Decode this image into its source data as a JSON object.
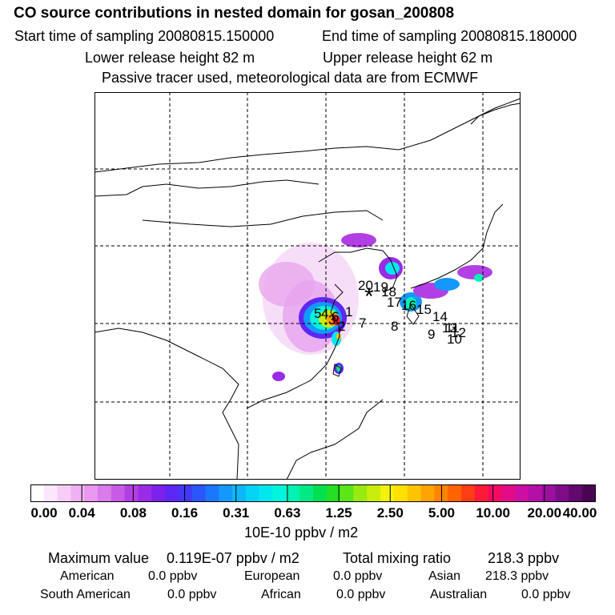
{
  "header": {
    "title": "CO  source contributions in nested domain for gosan_200808",
    "start_label": "Start time of sampling 20080815.150000",
    "end_label": "End time of sampling 20080815.180000",
    "lower_label": "Lower release height   82 m",
    "upper_label": "Upper release height   62 m",
    "tracer_note": "Passive tracer used, meteorological data are from ECMWF"
  },
  "map": {
    "receptor_symbol": "*",
    "source_labels": [
      "1",
      "2",
      "3",
      "4",
      "5",
      "6",
      "7",
      "8",
      "9",
      "10",
      "11",
      "12",
      "13",
      "14",
      "15",
      "16",
      "17",
      "18",
      "19",
      "20"
    ]
  },
  "colorbar": {
    "ticks": [
      "0.00",
      "0.04",
      "0.08",
      "0.16",
      "0.31",
      "0.63",
      "1.25",
      "2.50",
      "5.00",
      "10.00",
      "20.00",
      "40.00"
    ],
    "unit": "10E-10 ppbv / m2",
    "colors": [
      "#ffffff",
      "#fbe6fb",
      "#f6cdf6",
      "#efb1f2",
      "#e898ee",
      "#d97be9",
      "#c85be6",
      "#b23fe3",
      "#9a2be6",
      "#7c22ec",
      "#5f27f2",
      "#4238f8",
      "#2a56fb",
      "#1b77fc",
      "#1498fb",
      "#0cb8f8",
      "#06d4f4",
      "#00e8ee",
      "#00f5dc",
      "#00f2b4",
      "#00ea84",
      "#00e050",
      "#23e024",
      "#5de617",
      "#98ea10",
      "#c9ee0b",
      "#f2f20a",
      "#ffe000",
      "#ffc400",
      "#ffa400",
      "#ff8400",
      "#ff6400",
      "#ff3d14",
      "#ff1a3a",
      "#f40a64",
      "#e30c87",
      "#cd0ea2",
      "#b40fa8",
      "#9a0f9e",
      "#7e0c88",
      "#62086e",
      "#4a0552"
    ]
  },
  "stats": {
    "max_label": "Maximum value",
    "max_value": "0.119E-07 ppbv / m2",
    "total_label": "Total mixing ratio",
    "total_value": "218.3 ppbv",
    "regions": [
      {
        "name": "American",
        "value": "0.0 ppbv"
      },
      {
        "name": "European",
        "value": "0.0 ppbv"
      },
      {
        "name": "Asian",
        "value": "218.3 ppbv"
      },
      {
        "name": "South American",
        "value": "0.0 ppbv"
      },
      {
        "name": "African",
        "value": "0.0 ppbv"
      },
      {
        "name": "Australian",
        "value": "0.0 ppbv"
      }
    ]
  }
}
